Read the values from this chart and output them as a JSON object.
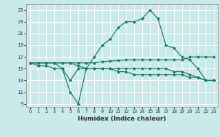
{
  "xlabel": "Humidex (Indice chaleur)",
  "bg_color": "#c8eaea",
  "line_color": "#1a7a6e",
  "grid_color": "#ffffff",
  "xlim": [
    -0.5,
    23.5
  ],
  "ylim": [
    8.5,
    26
  ],
  "yticks": [
    9,
    11,
    13,
    15,
    17,
    19,
    21,
    23,
    25
  ],
  "xticks": [
    0,
    1,
    2,
    3,
    4,
    5,
    6,
    7,
    8,
    9,
    10,
    11,
    12,
    13,
    14,
    15,
    16,
    17,
    18,
    19,
    20,
    21,
    22,
    23
  ],
  "lines": [
    {
      "x": [
        0,
        1,
        2,
        3,
        4,
        5,
        6,
        7,
        8,
        9,
        10,
        11,
        12,
        13,
        14,
        15,
        16,
        17,
        18,
        19,
        20,
        21,
        22,
        23
      ],
      "y": [
        16,
        16,
        16,
        16,
        15,
        11,
        9,
        15,
        17,
        19,
        20,
        22,
        23,
        23,
        23.5,
        25,
        23.5,
        19,
        18.5,
        17,
        16.5,
        15,
        13,
        13
      ]
    },
    {
      "x": [
        0,
        1,
        2,
        3,
        4,
        5,
        6,
        7,
        8,
        9,
        10,
        11,
        12,
        13,
        14,
        15,
        16,
        17,
        18,
        19,
        20,
        21,
        22,
        23
      ],
      "y": [
        16,
        16,
        16,
        16,
        16,
        16,
        16,
        16,
        16,
        16.2,
        16.3,
        16.4,
        16.5,
        16.5,
        16.5,
        16.5,
        16.5,
        16.5,
        16.5,
        16.5,
        17,
        17,
        17,
        17
      ]
    },
    {
      "x": [
        0,
        1,
        2,
        3,
        4,
        5,
        6,
        7,
        8,
        9,
        10,
        11,
        12,
        13,
        14,
        15,
        16,
        17,
        18,
        19,
        20,
        21,
        22,
        23
      ],
      "y": [
        16,
        15.5,
        15.5,
        15,
        15,
        13,
        15,
        15,
        15,
        15,
        15,
        15,
        15,
        15,
        15,
        15,
        15,
        15,
        14.5,
        14.5,
        14,
        13.5,
        13,
        13
      ]
    },
    {
      "x": [
        0,
        1,
        2,
        3,
        4,
        5,
        6,
        7,
        8,
        9,
        10,
        11,
        12,
        13,
        14,
        15,
        16,
        17,
        18,
        19,
        20,
        21,
        22,
        23
      ],
      "y": [
        16,
        16,
        16,
        16,
        16,
        16,
        15.5,
        15,
        15,
        15,
        15,
        14.5,
        14.5,
        14,
        14,
        14,
        14,
        14,
        14,
        14,
        13.5,
        13.5,
        13,
        13
      ]
    }
  ]
}
